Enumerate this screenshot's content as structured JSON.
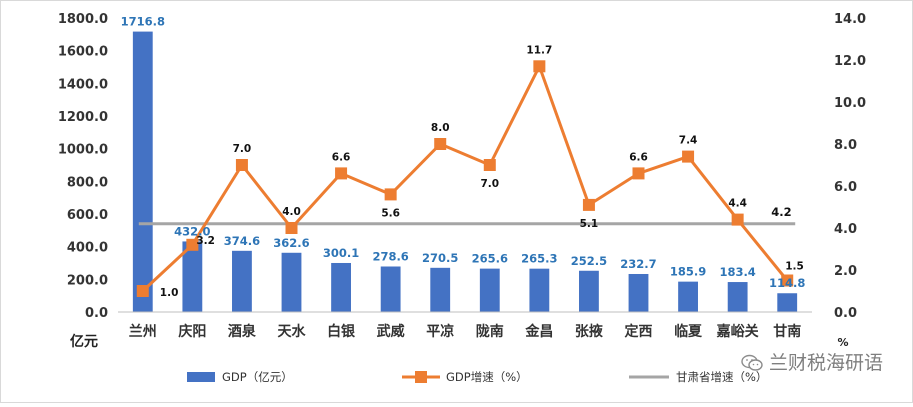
{
  "chart_data": {
    "type": "bar",
    "categories": [
      "兰州",
      "庆阳",
      "酒泉",
      "天水",
      "白银",
      "武威",
      "平凉",
      "陇南",
      "金昌",
      "张掖",
      "定西",
      "临夏",
      "嘉峪关",
      "甘南"
    ],
    "series": [
      {
        "name": "GDP（亿元）",
        "type": "bar",
        "axis": "left",
        "color": "#4472c4",
        "values": [
          1716.8,
          432.0,
          374.6,
          362.6,
          300.1,
          278.6,
          270.5,
          265.6,
          265.3,
          252.5,
          232.7,
          185.9,
          183.4,
          114.8
        ],
        "labels": [
          "1716.8",
          "432.0",
          "374.6",
          "362.6",
          "300.1",
          "278.6",
          "270.5",
          "265.6",
          "265.3",
          "252.5",
          "232.7",
          "185.9",
          "183.4",
          "114.8"
        ]
      },
      {
        "name": "GDP增速（%）",
        "type": "line",
        "axis": "right",
        "color": "#ed7d31",
        "values": [
          1.0,
          3.2,
          7.0,
          4.0,
          6.6,
          5.6,
          8.0,
          7.0,
          11.7,
          5.1,
          6.6,
          7.4,
          4.4,
          1.5
        ],
        "labels": [
          "1.0",
          "3.2",
          "7.0",
          "4.0",
          "6.6",
          "5.6",
          "8.0",
          "7.0",
          "11.7",
          "5.1",
          "6.6",
          "7.4",
          "4.4",
          "1.5"
        ]
      },
      {
        "name": "甘肃省增速（%）",
        "type": "line",
        "axis": "right",
        "color": "#a5a5a5",
        "value": 4.2,
        "label": "4.2",
        "label_color": "#ff0000"
      }
    ],
    "y_left": {
      "unit": "亿元",
      "ylim": [
        0,
        1800
      ],
      "ticks": [
        "0.0",
        "200.0",
        "400.0",
        "600.0",
        "800.0",
        "1000.0",
        "1200.0",
        "1400.0",
        "1600.0",
        "1800.0"
      ]
    },
    "y_right": {
      "unit": "%",
      "ylim": [
        0,
        14
      ],
      "ticks": [
        "0.0",
        "2.0",
        "4.0",
        "6.0",
        "8.0",
        "10.0",
        "12.0",
        "14.0"
      ]
    },
    "grid": false,
    "legend_position": "bottom"
  },
  "watermark": {
    "text": "兰财税海研语",
    "icon": "wechat-icon"
  }
}
